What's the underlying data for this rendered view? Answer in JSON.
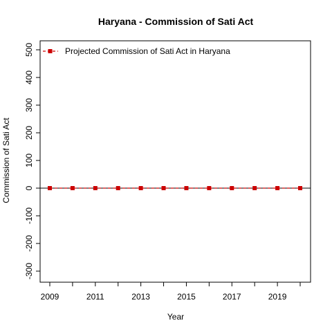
{
  "chart_data": {
    "type": "line",
    "title": "Haryana  -  Commission of Sati Act",
    "xlabel": "Year",
    "ylabel": "Commission of Sati Act",
    "xlim": [
      2009,
      2020
    ],
    "ylim": [
      -300,
      500
    ],
    "x_ticks": [
      2009,
      2010,
      2011,
      2012,
      2013,
      2014,
      2015,
      2016,
      2017,
      2018,
      2019,
      2020
    ],
    "x_tick_labels": [
      "2009",
      "",
      "2011",
      "",
      "2013",
      "",
      "2015",
      "",
      "2017",
      "",
      "2019",
      ""
    ],
    "y_ticks": [
      -300,
      -200,
      -100,
      0,
      100,
      200,
      300,
      400,
      500
    ],
    "y_tick_labels": [
      "-300",
      "-200",
      "-100",
      "0",
      "100",
      "200",
      "300",
      "400",
      "500"
    ],
    "grid": false,
    "legend_position": "top-left",
    "reference_line_y": 0,
    "series": [
      {
        "name": "Projected  Commission of Sati Act  in  Haryana",
        "color": "#cc0000",
        "line_style": "dashed",
        "marker": "square",
        "x": [
          2009,
          2010,
          2011,
          2012,
          2013,
          2014,
          2015,
          2016,
          2017,
          2018,
          2019,
          2020
        ],
        "values": [
          0,
          0,
          0,
          0,
          0,
          0,
          0,
          0,
          0,
          0,
          0,
          0
        ]
      }
    ]
  }
}
